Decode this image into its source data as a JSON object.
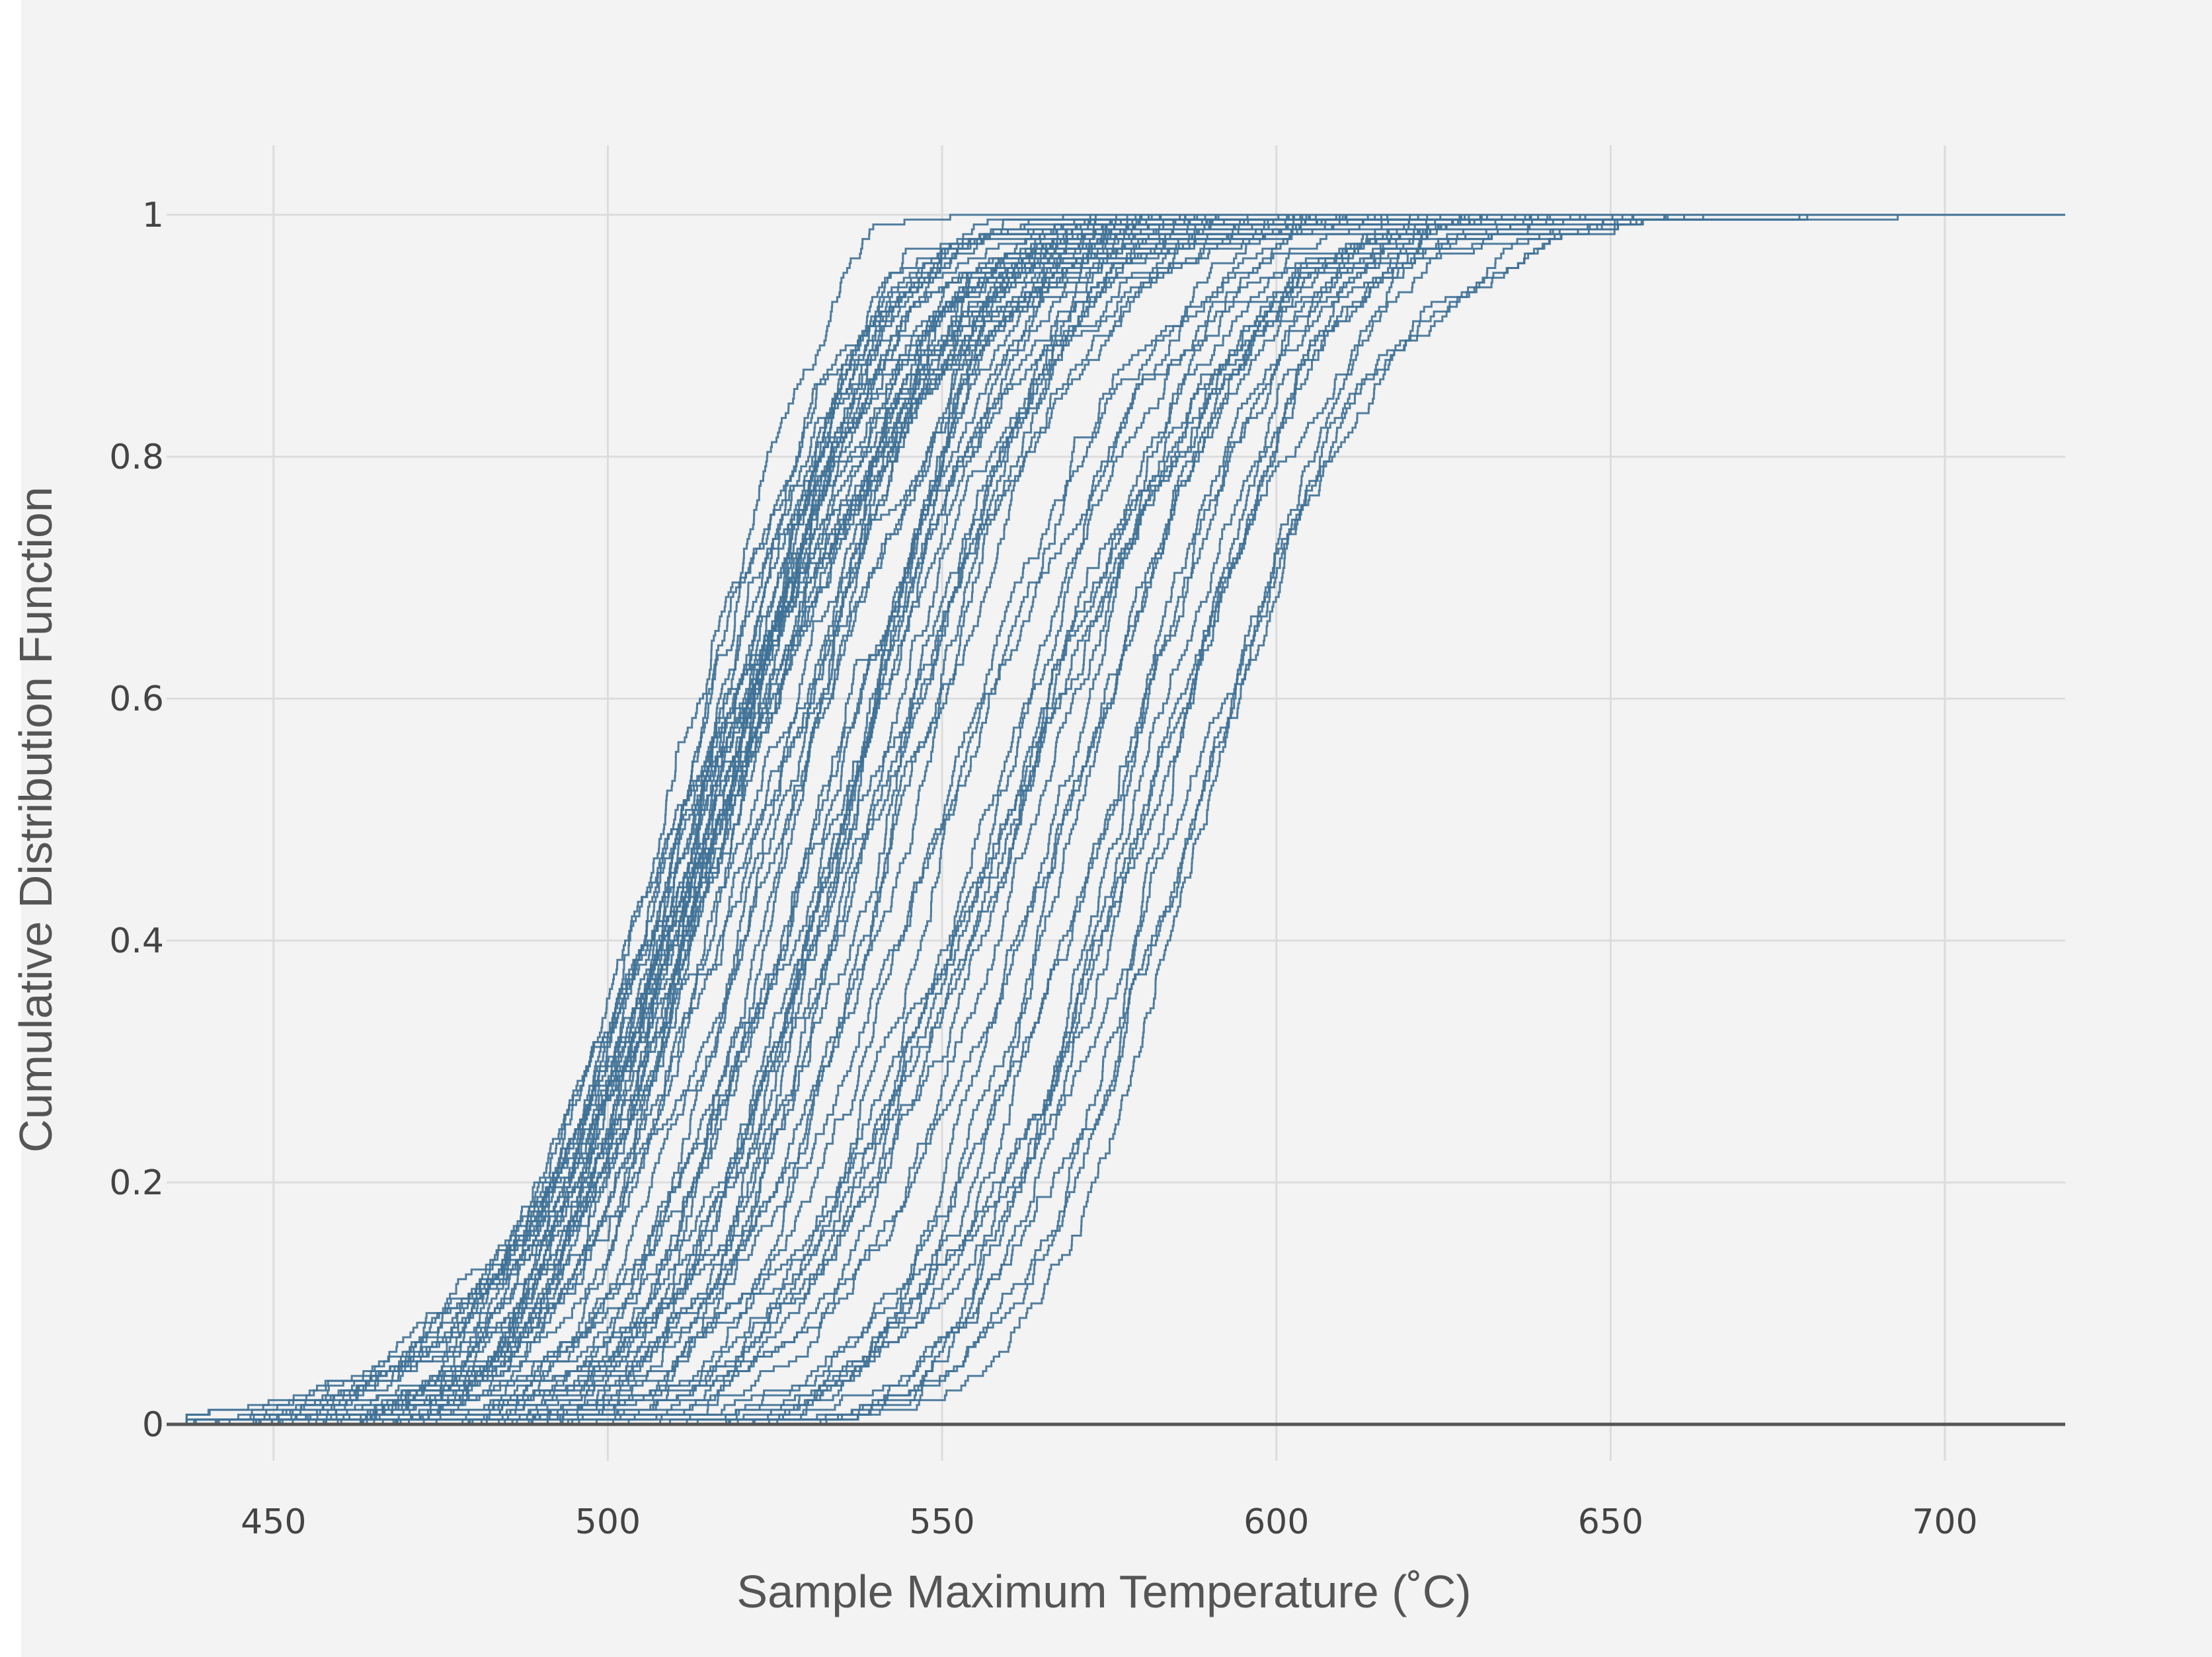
{
  "chart_data": {
    "type": "line",
    "xlabel": "Sample Maximum Temperature (˚C)",
    "ylabel": "Cumulative Distribution Function",
    "xlim": [
      434,
      718
    ],
    "ylim": [
      0,
      1
    ],
    "x_ticks": [
      450,
      500,
      550,
      600,
      650,
      700
    ],
    "x_tick_labels": [
      "450",
      "500",
      "550",
      "600",
      "650",
      "700"
    ],
    "y_ticks": [
      0,
      0.2,
      0.4,
      0.6,
      0.8,
      1
    ],
    "y_tick_labels": [
      "0",
      "0.2",
      "0.4",
      "0.6",
      "0.8",
      "1"
    ],
    "grid": true,
    "series_color": "#3f7196",
    "background_color": "#f3f3f3",
    "series_description": "Empirical CDF curves of sample maximum temperature, one per simulation run",
    "series_count": 80,
    "median_range": [
      510,
      595
    ],
    "spread_range": [
      17,
      28
    ],
    "x_min_observed": 437,
    "x_max_observed": 718
  }
}
